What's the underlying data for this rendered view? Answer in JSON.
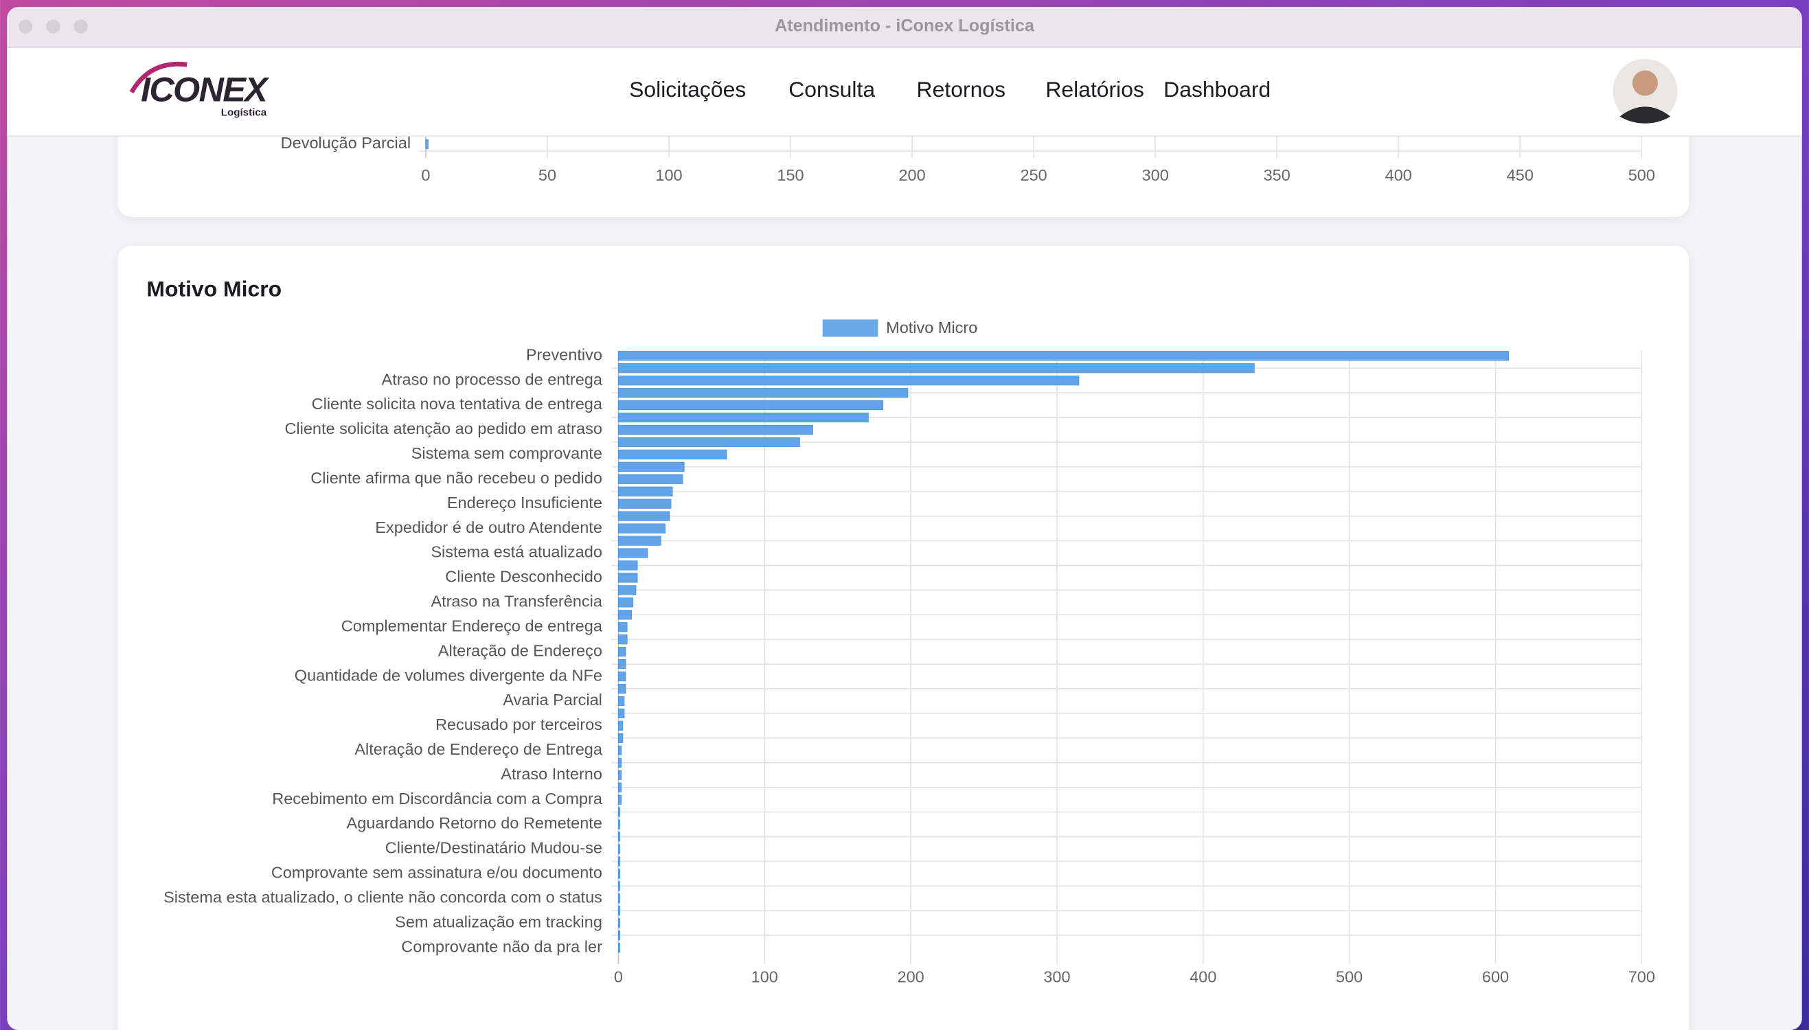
{
  "window_title": "Atendimento - iConex Logística",
  "logo": {
    "name": "ICONEX",
    "tagline": "Logística"
  },
  "nav": [
    "Solicitações",
    "Consulta",
    "Retornos",
    "Relatórios",
    "Dashboard"
  ],
  "chart_data": [
    {
      "type": "bar",
      "orientation": "horizontal",
      "categories": [
        "Devolução Parcial"
      ],
      "values": [
        1
      ],
      "color": "#5aa0e6",
      "xlim": [
        0,
        500
      ],
      "xticks": [
        0,
        50,
        100,
        150,
        200,
        250,
        300,
        350,
        400,
        450,
        500
      ],
      "grid": true
    },
    {
      "type": "bar",
      "orientation": "horizontal",
      "title": "Motivo Micro",
      "categories": [
        "Preventivo",
        null,
        "Atraso no processo de entrega",
        null,
        "Cliente solicita nova tentativa de entrega",
        null,
        "Cliente solicita atenção ao pedido em atraso",
        null,
        "Sistema sem comprovante",
        null,
        "Cliente afirma que não recebeu o pedido",
        null,
        "Endereço Insuficiente",
        null,
        "Expedidor é de outro Atendente",
        null,
        "Sistema está atualizado",
        null,
        "Cliente Desconhecido",
        null,
        "Atraso na Transferência",
        null,
        "Complementar Endereço de entrega",
        null,
        "Alteração de Endereço",
        null,
        "Quantidade de volumes divergente da NFe",
        null,
        "Avaria Parcial",
        null,
        "Recusado por terceiros",
        null,
        "Alteração de Endereço de Entrega",
        null,
        "Atraso Interno",
        null,
        "Recebimento em Discordância com a Compra",
        null,
        "Aguardando Retorno do Remetente",
        null,
        "Cliente/Destinatário Mudou-se",
        null,
        "Comprovante sem assinatura e/ou documento",
        null,
        "Sistema esta atualizado, o cliente não concorda com o status",
        null,
        "Sem atualização em tracking",
        null,
        "Comprovante não da pra ler"
      ],
      "series": [
        {
          "name": "Motivo Micro",
          "color": "#5aa0e6",
          "values": [
            609,
            435,
            315,
            198,
            181,
            171,
            133,
            124,
            74,
            45,
            44,
            37,
            36,
            35,
            32,
            29,
            20,
            13,
            13,
            12,
            10,
            9,
            6,
            6,
            5,
            5,
            5,
            5,
            4,
            4,
            3,
            3,
            2,
            2,
            2,
            2,
            2,
            1,
            1,
            1,
            1,
            1,
            1,
            1,
            1,
            1,
            1,
            1,
            1
          ]
        }
      ],
      "xlim": [
        0,
        700
      ],
      "xticks": [
        0,
        100,
        200,
        300,
        400,
        500,
        600,
        700
      ],
      "grid": true,
      "legend": "top"
    }
  ]
}
